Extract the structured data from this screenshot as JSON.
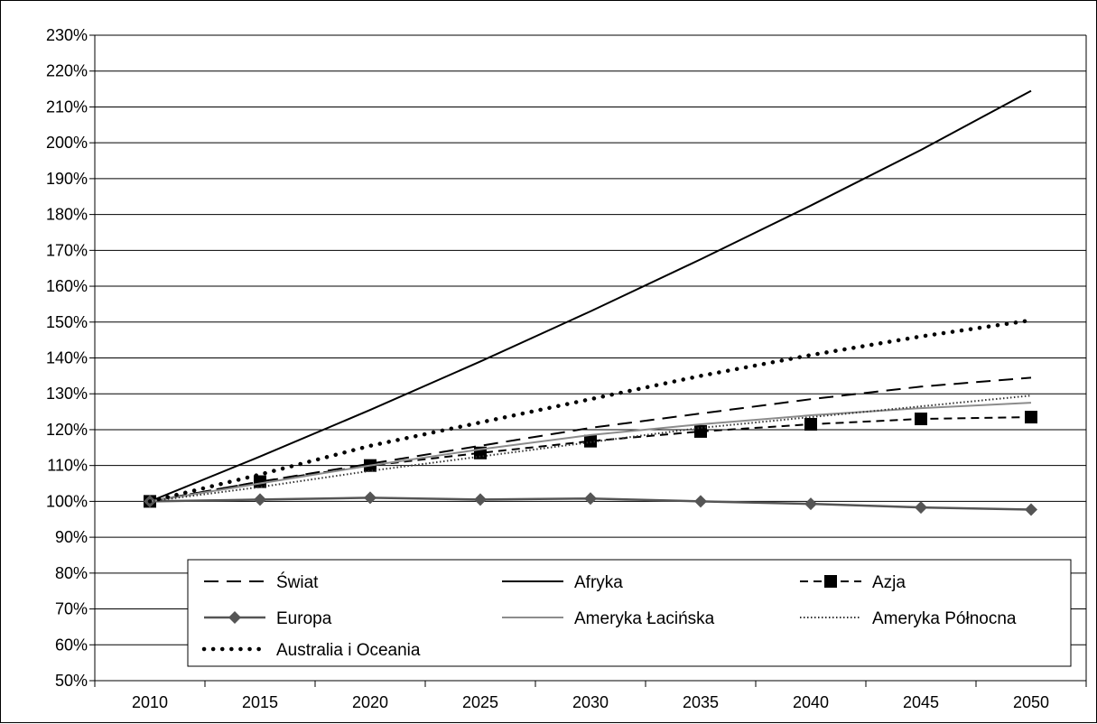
{
  "chart_data": {
    "type": "line",
    "title": "",
    "xlabel": "",
    "ylabel": "",
    "x": [
      2010,
      2015,
      2020,
      2025,
      2030,
      2035,
      2040,
      2045,
      2050
    ],
    "ylim": [
      50,
      230
    ],
    "y_ticks": [
      "50%",
      "60%",
      "70%",
      "80%",
      "90%",
      "100%",
      "110%",
      "120%",
      "130%",
      "140%",
      "150%",
      "160%",
      "170%",
      "180%",
      "190%",
      "200%",
      "210%",
      "220%",
      "230%"
    ],
    "x_ticks": [
      "2010",
      "2015",
      "2020",
      "2025",
      "2030",
      "2035",
      "2040",
      "2045",
      "2050"
    ],
    "grid": "horizontal",
    "legend_position": "bottom-inside",
    "series": [
      {
        "name": "Świat",
        "values": [
          100,
          105.5,
          110.5,
          115.5,
          120.5,
          124.5,
          128.5,
          132,
          134.5
        ],
        "color": "#000000",
        "style": "dashed"
      },
      {
        "name": "Afryka",
        "values": [
          100,
          112.5,
          125.5,
          139,
          153,
          167.5,
          182.5,
          198,
          214.5
        ],
        "color": "#000000",
        "style": "solid"
      },
      {
        "name": "Azja",
        "values": [
          100,
          105.5,
          110,
          113.5,
          116.8,
          119.5,
          121.5,
          123,
          123.5
        ],
        "color": "#000000",
        "style": "dash-square"
      },
      {
        "name": "Europa",
        "values": [
          100,
          100.5,
          101,
          100.5,
          100.8,
          100,
          99.3,
          98.3,
          97.7
        ],
        "color": "#555555",
        "style": "solid-diamond"
      },
      {
        "name": "Ameryka Łacińska",
        "values": [
          100,
          105,
          110,
          114.5,
          118.5,
          121.5,
          124,
          126,
          127.5
        ],
        "color": "#8c8c8c",
        "style": "solid"
      },
      {
        "name": "Ameryka Północna",
        "values": [
          100,
          104,
          108.5,
          112.5,
          116.5,
          120.5,
          123.5,
          126.5,
          129.5
        ],
        "color": "#333333",
        "style": "fine-dotted"
      },
      {
        "name": "Australia i Oceania",
        "values": [
          100,
          107.5,
          115.5,
          122,
          128.5,
          135,
          140.8,
          146,
          150.5
        ],
        "color": "#000000",
        "style": "bold-dotted"
      }
    ]
  }
}
